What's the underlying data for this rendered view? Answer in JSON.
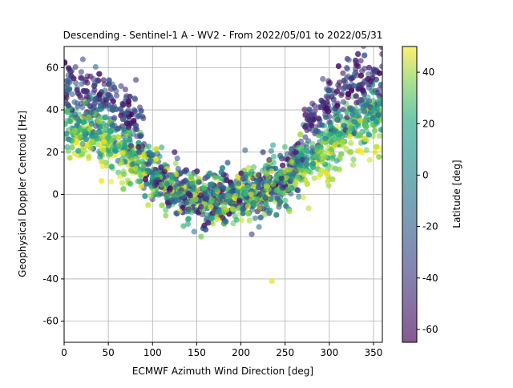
{
  "chart_data": {
    "type": "scatter",
    "title": "Descending - Sentinel-1 A - WV2 - From 2022/05/01 to 2022/05/31",
    "xlabel": "ECMWF Azimuth Wind Direction [deg]",
    "ylabel": "Geophysical Doppler Centroid [Hz]",
    "xlim": [
      0,
      360
    ],
    "ylim": [
      -70,
      70
    ],
    "xticks": [
      0,
      50,
      100,
      150,
      200,
      250,
      300,
      350
    ],
    "yticks": [
      -60,
      -40,
      -20,
      0,
      20,
      40,
      60
    ],
    "grid": true,
    "colorbar": {
      "label": "Latitude [deg]",
      "colormap": "viridis",
      "range": [
        -65,
        50
      ],
      "ticks": [
        -60,
        -40,
        -20,
        0,
        20,
        40
      ]
    },
    "point_alpha": 0.6,
    "trend": {
      "description": "Doppler follows roughly cosine of wind direction: high near 0 and 360 deg, low near 180 deg",
      "x_anchor": [
        0,
        30,
        60,
        90,
        120,
        150,
        180,
        210,
        240,
        270,
        300,
        330,
        360
      ],
      "y_center": [
        36,
        33,
        25,
        14,
        3,
        -3,
        -2,
        0,
        4,
        14,
        27,
        36,
        40
      ],
      "y_spread": [
        12,
        12,
        12,
        11,
        10,
        10,
        11,
        11,
        11,
        11,
        12,
        12,
        12
      ]
    },
    "sample_points": [
      {
        "x": 5,
        "y": 42,
        "lat": -45
      },
      {
        "x": 12,
        "y": 30,
        "lat": 30
      },
      {
        "x": 20,
        "y": 55,
        "lat": -50
      },
      {
        "x": 28,
        "y": 18,
        "lat": 40
      },
      {
        "x": 35,
        "y": 45,
        "lat": -30
      },
      {
        "x": 45,
        "y": 25,
        "lat": 45
      },
      {
        "x": 55,
        "y": 40,
        "lat": -20
      },
      {
        "x": 65,
        "y": 15,
        "lat": 35
      },
      {
        "x": 75,
        "y": 5,
        "lat": 10
      },
      {
        "x": 85,
        "y": 20,
        "lat": -40
      },
      {
        "x": 95,
        "y": -5,
        "lat": 40
      },
      {
        "x": 105,
        "y": 10,
        "lat": 5
      },
      {
        "x": 115,
        "y": -10,
        "lat": 30
      },
      {
        "x": 125,
        "y": 20,
        "lat": -55
      },
      {
        "x": 135,
        "y": -15,
        "lat": 15
      },
      {
        "x": 145,
        "y": 5,
        "lat": 0
      },
      {
        "x": 155,
        "y": -20,
        "lat": 25
      },
      {
        "x": 165,
        "y": 10,
        "lat": -10
      },
      {
        "x": 175,
        "y": -8,
        "lat": -5
      },
      {
        "x": 185,
        "y": 15,
        "lat": -30
      },
      {
        "x": 195,
        "y": -12,
        "lat": 10
      },
      {
        "x": 205,
        "y": 8,
        "lat": -15
      },
      {
        "x": 215,
        "y": -5,
        "lat": 5
      },
      {
        "x": 225,
        "y": 20,
        "lat": -40
      },
      {
        "x": 235,
        "y": -41,
        "lat": 45
      },
      {
        "x": 245,
        "y": 10,
        "lat": 20
      },
      {
        "x": 255,
        "y": -8,
        "lat": 35
      },
      {
        "x": 265,
        "y": 22,
        "lat": 15
      },
      {
        "x": 275,
        "y": 5,
        "lat": 40
      },
      {
        "x": 285,
        "y": 30,
        "lat": -35
      },
      {
        "x": 295,
        "y": 18,
        "lat": 30
      },
      {
        "x": 305,
        "y": 45,
        "lat": -45
      },
      {
        "x": 315,
        "y": 25,
        "lat": 35
      },
      {
        "x": 325,
        "y": 55,
        "lat": -50
      },
      {
        "x": 335,
        "y": 35,
        "lat": 40
      },
      {
        "x": 345,
        "y": 60,
        "lat": -55
      },
      {
        "x": 352,
        "y": 20,
        "lat": 45
      },
      {
        "x": 358,
        "y": 45,
        "lat": 10
      }
    ]
  }
}
